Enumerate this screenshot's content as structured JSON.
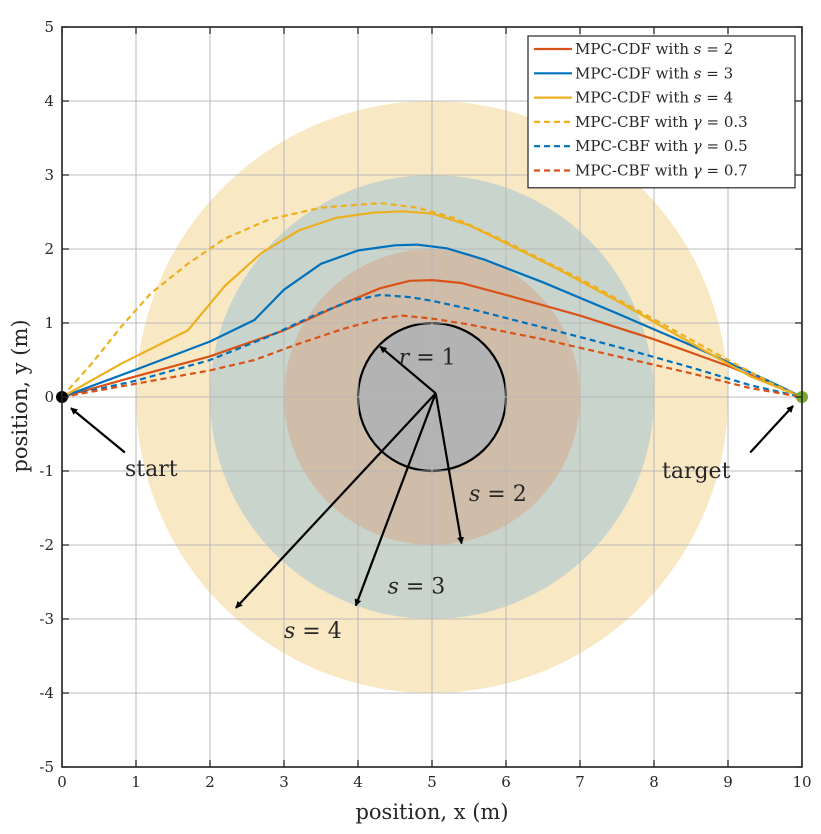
{
  "chart_data": {
    "type": "line",
    "xlabel": "position, x (m)",
    "ylabel": "position, y (m)",
    "xlim": [
      0,
      10
    ],
    "ylim": [
      -5,
      5
    ],
    "xticks": [
      0,
      1,
      2,
      3,
      4,
      5,
      6,
      7,
      8,
      9,
      10
    ],
    "yticks": [
      -5,
      -4,
      -3,
      -2,
      -1,
      0,
      1,
      2,
      3,
      4,
      5
    ],
    "grid": true,
    "legend_position": "top-right",
    "obstacle": {
      "center": [
        5,
        0
      ],
      "radius": 1,
      "color": "#b3b3b3"
    },
    "safety_circles": [
      {
        "label": "s = 4",
        "center": [
          5,
          0
        ],
        "radius": 4,
        "color": "#f8e8c4"
      },
      {
        "label": "s = 3",
        "center": [
          5,
          0
        ],
        "radius": 3,
        "color": "#c9d4cc"
      },
      {
        "label": "s = 2",
        "center": [
          5,
          0
        ],
        "radius": 2,
        "color": "#cfbca9"
      }
    ],
    "start_point": {
      "label": "start",
      "x": 0,
      "y": 0,
      "color": "#000000"
    },
    "target_point": {
      "label": "target",
      "x": 10,
      "y": 0,
      "color": "#77ac30"
    },
    "annotations": [
      {
        "text": "r = 1",
        "italic_part": "r",
        "x": 4.55,
        "y": 0.55
      },
      {
        "text": "s = 2",
        "italic_part": "s",
        "x": 5.5,
        "y": -1.3
      },
      {
        "text": "s = 3",
        "italic_part": "s",
        "x": 4.4,
        "y": -2.55
      },
      {
        "text": "s = 4",
        "italic_part": "s",
        "x": 3.0,
        "y": -3.15
      }
    ],
    "arrows": [
      {
        "from": [
          0.85,
          -0.75
        ],
        "to": [
          0.12,
          -0.15
        ]
      },
      {
        "from": [
          9.3,
          -0.75
        ],
        "to": [
          9.88,
          -0.12
        ]
      },
      {
        "from": [
          5.05,
          0.05
        ],
        "to": [
          4.3,
          0.68
        ]
      },
      {
        "from": [
          5.05,
          0.05
        ],
        "to": [
          5.4,
          -1.98
        ]
      },
      {
        "from": [
          5.05,
          0.05
        ],
        "to": [
          3.97,
          -2.82
        ]
      },
      {
        "from": [
          5.05,
          0.05
        ],
        "to": [
          2.35,
          -2.85
        ]
      }
    ],
    "series": [
      {
        "name": "MPC-CDF with s = 2",
        "color": "#d95319",
        "dash": false,
        "x": [
          0,
          1,
          2,
          3,
          3.7,
          4.3,
          4.7,
          5.0,
          5.4,
          6.0,
          7.0,
          8.0,
          9.0,
          10.0
        ],
        "y": [
          0,
          0.28,
          0.55,
          0.9,
          1.22,
          1.47,
          1.57,
          1.58,
          1.54,
          1.38,
          1.1,
          0.78,
          0.42,
          0
        ]
      },
      {
        "name": "MPC-CDF with s = 3",
        "color": "#0072bd",
        "dash": false,
        "x": [
          0,
          1,
          2,
          2.6,
          3.0,
          3.5,
          4.0,
          4.5,
          4.8,
          5.2,
          5.7,
          6.5,
          7.5,
          8.5,
          9.5,
          10.0
        ],
        "y": [
          0,
          0.37,
          0.75,
          1.04,
          1.45,
          1.8,
          1.98,
          2.05,
          2.06,
          2.01,
          1.86,
          1.55,
          1.13,
          0.7,
          0.24,
          0
        ]
      },
      {
        "name": "MPC-CDF with s = 4",
        "color": "#edb120",
        "dash": false,
        "x": [
          0,
          0.8,
          1.7,
          2.2,
          2.7,
          3.2,
          3.7,
          4.2,
          4.6,
          5.0,
          5.5,
          6.0,
          6.7,
          7.5,
          8.5,
          9.3,
          10.0
        ],
        "y": [
          0,
          0.45,
          0.9,
          1.5,
          1.95,
          2.25,
          2.42,
          2.49,
          2.51,
          2.48,
          2.32,
          2.08,
          1.73,
          1.3,
          0.73,
          0.28,
          0
        ]
      },
      {
        "name": "MPC-CBF with γ = 0.3",
        "color": "#edb120",
        "dash": true,
        "x": [
          0,
          0.4,
          0.8,
          1.2,
          1.7,
          2.2,
          2.8,
          3.5,
          4.3,
          4.8,
          5.3,
          6.0,
          7.0,
          8.0,
          9.0,
          9.6,
          10.0
        ],
        "y": [
          0,
          0.45,
          0.95,
          1.4,
          1.8,
          2.14,
          2.4,
          2.56,
          2.62,
          2.56,
          2.42,
          2.1,
          1.6,
          1.05,
          0.5,
          0.18,
          0
        ]
      },
      {
        "name": "MPC-CBF with γ = 0.5",
        "color": "#0072bd",
        "dash": true,
        "x": [
          0,
          1,
          2,
          2.8,
          3.4,
          3.9,
          4.3,
          4.7,
          5.0,
          5.6,
          6.5,
          7.5,
          8.5,
          9.3,
          10.0
        ],
        "y": [
          0,
          0.22,
          0.5,
          0.82,
          1.1,
          1.3,
          1.38,
          1.35,
          1.3,
          1.17,
          0.94,
          0.68,
          0.4,
          0.16,
          0
        ]
      },
      {
        "name": "MPC-CBF with γ = 0.7",
        "color": "#d95319",
        "dash": true,
        "x": [
          0,
          1,
          2,
          2.6,
          3.2,
          3.8,
          4.3,
          4.6,
          5.0,
          5.5,
          6.5,
          7.5,
          8.5,
          9.3,
          10.0
        ],
        "y": [
          0,
          0.18,
          0.36,
          0.5,
          0.72,
          0.92,
          1.06,
          1.1,
          1.06,
          0.98,
          0.78,
          0.55,
          0.32,
          0.12,
          0
        ]
      }
    ]
  }
}
